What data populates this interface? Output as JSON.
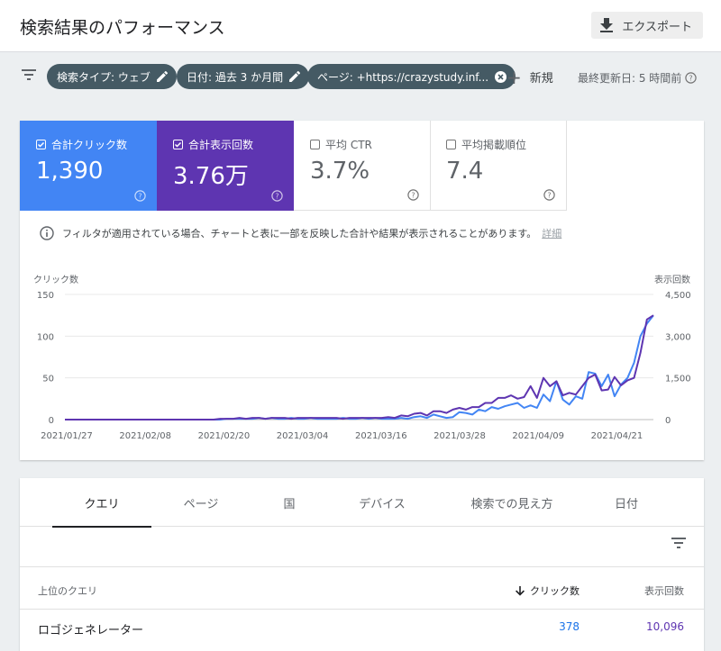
{
  "header": {
    "title": "検索結果のパフォーマンス",
    "export_label": "エクスポート"
  },
  "filters": {
    "chips": [
      {
        "label": "検索タイプ: ウェブ",
        "action_icon": "pencil-icon"
      },
      {
        "label": "日付: 過去 3 か月間",
        "action_icon": "pencil-icon"
      },
      {
        "label": "ページ: +https://crazystudy.inf...",
        "action_icon": "close-circle-icon"
      }
    ],
    "new_label": "新規",
    "updated_label": "最終更新日: 5 時間前"
  },
  "metrics": [
    {
      "label": "合計クリック数",
      "value": "1,390",
      "checked": true,
      "color": "#4285f4"
    },
    {
      "label": "合計表示回数",
      "value": "3.76万",
      "checked": true,
      "color": "#5e35b1"
    },
    {
      "label": "平均 CTR",
      "value": "3.7%",
      "checked": false
    },
    {
      "label": "平均掲載順位",
      "value": "7.4",
      "checked": false
    }
  ],
  "notice": {
    "text": "フィルタが適用されている場合、チャートと表に一部を反映した合計や結果が表示されることがあります。",
    "link": "詳細"
  },
  "chart_data": {
    "type": "line",
    "ylabel_left": "クリック数",
    "ylabel_right": "表示回数",
    "y_left_ticks": [
      "150",
      "100",
      "50",
      "0"
    ],
    "y_right_ticks": [
      "4,500",
      "3,000",
      "1,500",
      "0"
    ],
    "ylim_left": [
      0,
      150
    ],
    "ylim_right": [
      0,
      4500
    ],
    "x_tick_labels": [
      "2021/01/27",
      "2021/02/08",
      "2021/02/20",
      "2021/03/04",
      "2021/03/16",
      "2021/03/28",
      "2021/04/09",
      "2021/04/21"
    ],
    "series": [
      {
        "name": "合計クリック数",
        "axis": "left",
        "color": "#4285f4",
        "values": [
          0,
          0,
          0,
          0,
          0,
          0,
          0,
          0,
          0,
          0,
          0,
          0,
          0,
          0,
          0,
          0,
          0,
          0,
          0,
          0,
          0,
          0,
          0,
          0,
          0,
          1,
          1,
          1,
          1,
          1,
          2,
          1,
          2,
          1,
          1,
          2,
          1,
          1,
          2,
          1,
          1,
          1,
          1,
          2,
          1,
          1,
          2,
          1,
          2,
          1,
          1,
          1,
          2,
          1,
          3,
          4,
          2,
          6,
          4,
          2,
          3,
          9,
          8,
          6,
          12,
          10,
          15,
          13,
          16,
          18,
          20,
          14,
          17,
          14,
          30,
          22,
          46,
          24,
          18,
          28,
          25,
          57,
          55,
          40,
          54,
          28,
          42,
          50,
          68,
          100,
          115,
          125
        ]
      },
      {
        "name": "合計表示回数",
        "axis": "right",
        "color": "#5e35b1",
        "values": [
          0,
          0,
          0,
          0,
          0,
          0,
          0,
          0,
          0,
          0,
          0,
          0,
          0,
          0,
          0,
          0,
          0,
          0,
          0,
          0,
          0,
          0,
          0,
          0,
          30,
          30,
          30,
          60,
          30,
          60,
          60,
          30,
          60,
          60,
          60,
          30,
          60,
          60,
          60,
          60,
          60,
          60,
          60,
          30,
          60,
          60,
          60,
          60,
          60,
          60,
          90,
          60,
          150,
          120,
          210,
          240,
          150,
          300,
          300,
          240,
          360,
          420,
          360,
          450,
          450,
          600,
          600,
          780,
          780,
          870,
          750,
          810,
          1200,
          780,
          1500,
          1200,
          1380,
          870,
          960,
          900,
          1200,
          1500,
          1620,
          1050,
          1080,
          1530,
          1230,
          1410,
          1500,
          2400,
          3600,
          3750
        ]
      }
    ]
  },
  "tabs": [
    "クエリ",
    "ページ",
    "国",
    "デバイス",
    "検索での見え方",
    "日付"
  ],
  "table": {
    "headers": {
      "query": "上位のクエリ",
      "clicks": "クリック数",
      "impressions": "表示回数"
    },
    "rows": [
      {
        "query": "ロゴジェネレーター",
        "clicks": "378",
        "impressions": "10,096"
      }
    ]
  }
}
